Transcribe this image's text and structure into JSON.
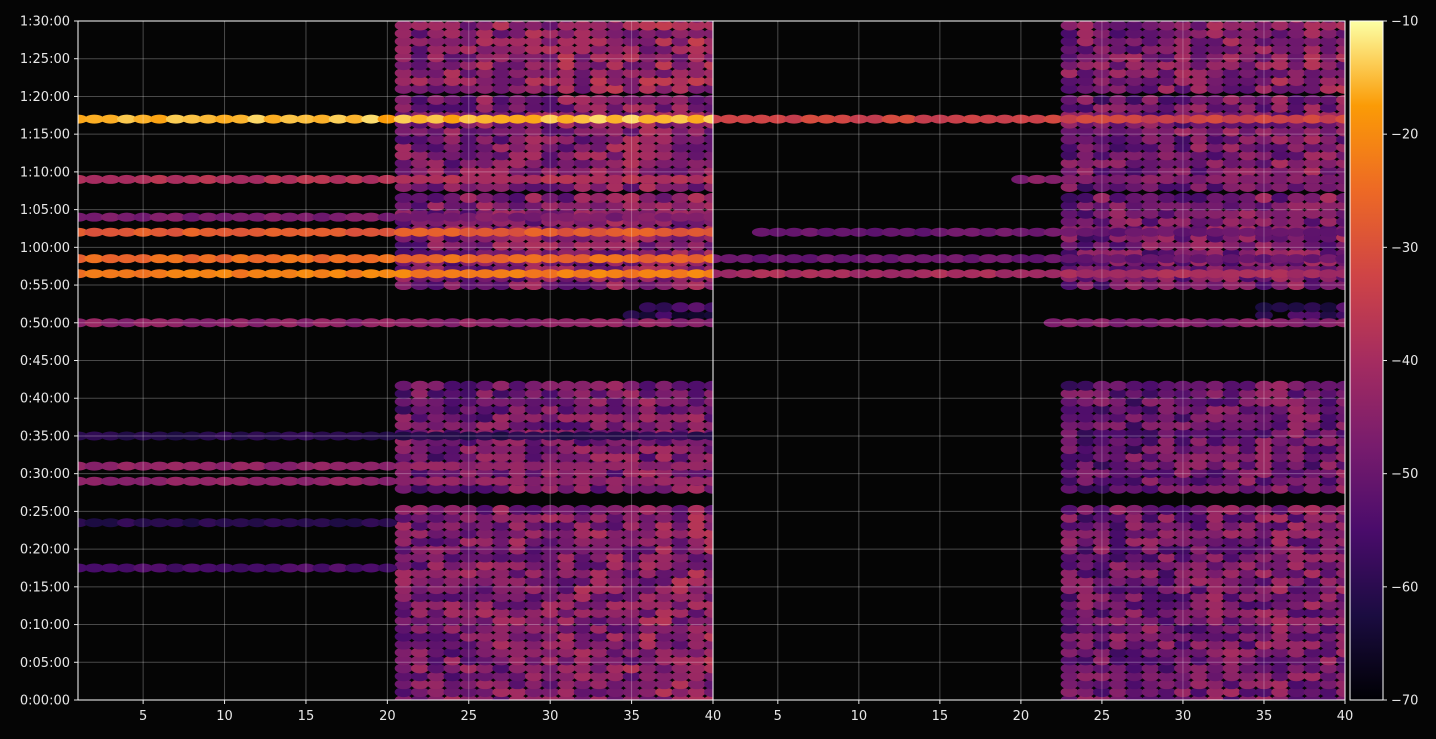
{
  "chart_data": {
    "type": "heatmap",
    "title": "",
    "xlabel": "",
    "ylabel": "",
    "colormap": "inferno",
    "background": "#050505",
    "grid": true,
    "panels": [
      {
        "xlim": [
          1,
          40
        ],
        "x_ticks": [
          5,
          10,
          15,
          20,
          25,
          30,
          35,
          40
        ],
        "x_tick_labels": [
          "5",
          "10",
          "15",
          "20",
          "25",
          "30",
          "35",
          "40"
        ],
        "bands": [
          {
            "y_min": 77,
            "x_from": 1,
            "x_to": 40,
            "level": -15
          },
          {
            "y_min": 69,
            "x_from": 1,
            "x_to": 40,
            "level": -38
          },
          {
            "y_min": 64,
            "x_from": 1,
            "x_to": 40,
            "level": -47
          },
          {
            "y_min": 62,
            "x_from": 1,
            "x_to": 40,
            "level": -28
          },
          {
            "y_min": 58.5,
            "x_from": 1,
            "x_to": 40,
            "level": -25
          },
          {
            "y_min": 56.5,
            "x_from": 1,
            "x_to": 40,
            "level": -22
          },
          {
            "y_min": 50,
            "x_from": 1,
            "x_to": 40,
            "level": -44
          },
          {
            "y_min": 35,
            "x_from": 1,
            "x_to": 40,
            "level": -60
          },
          {
            "y_min": 31,
            "x_from": 1,
            "x_to": 40,
            "level": -44
          },
          {
            "y_min": 29,
            "x_from": 1,
            "x_to": 40,
            "level": -44
          },
          {
            "y_min": 23.5,
            "x_from": 1,
            "x_to": 20,
            "level": -60
          },
          {
            "y_min": 17.5,
            "x_from": 1,
            "x_to": 20,
            "level": -55
          }
        ],
        "clusters": [
          {
            "y_from": 0,
            "y_to": 26,
            "x_from": 21,
            "x_to": 40,
            "level": -48
          },
          {
            "y_from": 28,
            "y_to": 42,
            "x_from": 21,
            "x_to": 40,
            "level": -50
          },
          {
            "y_from": 51,
            "y_to": 53,
            "x_from": 35,
            "x_to": 40,
            "level": -60
          },
          {
            "y_from": 55,
            "y_to": 67,
            "x_from": 21,
            "x_to": 40,
            "level": -48
          },
          {
            "y_from": 68,
            "y_to": 80,
            "x_from": 21,
            "x_to": 40,
            "level": -48
          },
          {
            "y_from": 81,
            "y_to": 91,
            "x_from": 21,
            "x_to": 40,
            "level": -46
          }
        ]
      },
      {
        "xlim": [
          1,
          40
        ],
        "x_ticks": [
          5,
          10,
          15,
          20,
          25,
          30,
          35,
          40
        ],
        "x_tick_labels": [
          "5",
          "10",
          "15",
          "20",
          "25",
          "30",
          "35",
          "40"
        ],
        "bands": [
          {
            "y_min": 77,
            "x_from": 1,
            "x_to": 40,
            "level": -33
          },
          {
            "y_min": 62,
            "x_from": 4,
            "x_to": 40,
            "level": -50
          },
          {
            "y_min": 58.5,
            "x_from": 1,
            "x_to": 40,
            "level": -50
          },
          {
            "y_min": 56.5,
            "x_from": 1,
            "x_to": 40,
            "level": -40
          },
          {
            "y_min": 50,
            "x_from": 22,
            "x_to": 40,
            "level": -46
          },
          {
            "y_min": 69,
            "x_from": 20,
            "x_to": 40,
            "level": -46
          }
        ],
        "clusters": [
          {
            "y_from": 0,
            "y_to": 26,
            "x_from": 23,
            "x_to": 40,
            "level": -50
          },
          {
            "y_from": 28,
            "y_to": 42,
            "x_from": 23,
            "x_to": 40,
            "level": -52
          },
          {
            "y_from": 51,
            "y_to": 53,
            "x_from": 35,
            "x_to": 40,
            "level": -62
          },
          {
            "y_from": 55,
            "y_to": 67,
            "x_from": 23,
            "x_to": 40,
            "level": -50
          },
          {
            "y_from": 68,
            "y_to": 80,
            "x_from": 23,
            "x_to": 40,
            "level": -50
          },
          {
            "y_from": 81,
            "y_to": 91,
            "x_from": 23,
            "x_to": 40,
            "level": -48
          }
        ]
      }
    ],
    "y_unit": "minutes",
    "ylim": [
      0,
      90
    ],
    "y_ticks": [
      0,
      5,
      10,
      15,
      20,
      25,
      30,
      35,
      40,
      45,
      50,
      55,
      60,
      65,
      70,
      75,
      80,
      85,
      90
    ],
    "y_tick_labels": [
      "0:00:00",
      "0:05:00",
      "0:10:00",
      "0:15:00",
      "0:20:00",
      "0:25:00",
      "0:30:00",
      "0:35:00",
      "0:40:00",
      "0:45:00",
      "0:50:00",
      "0:55:00",
      "1:00:00",
      "1:05:00",
      "1:10:00",
      "1:15:00",
      "1:20:00",
      "1:25:00",
      "1:30:00"
    ],
    "colorbar": {
      "range": [
        -70,
        -10
      ],
      "ticks": [
        -70,
        -60,
        -50,
        -40,
        -30,
        -20,
        -10
      ],
      "tick_labels": [
        "−70",
        "−60",
        "−50",
        "−40",
        "−30",
        "−20",
        "−10"
      ]
    }
  }
}
